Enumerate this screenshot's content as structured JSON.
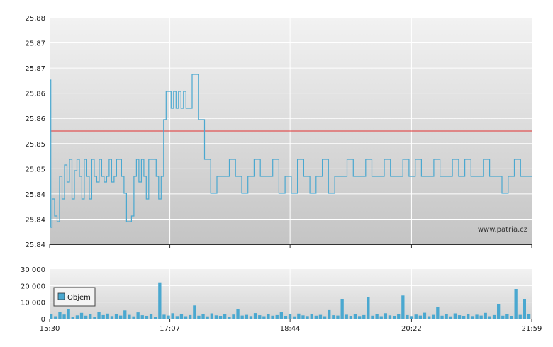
{
  "chart_data": [
    {
      "type": "line",
      "grid": true,
      "x_range": [
        "15:30",
        "21:59"
      ],
      "x_tick_labels": [
        "15:30",
        "17:07",
        "18:44",
        "20:22",
        "21:59"
      ],
      "ylim": [
        25.84,
        25.88
      ],
      "y_tick_labels": [
        "25,88",
        "25,87",
        "25,87",
        "25,86",
        "25,86",
        "25,85",
        "25,85",
        "25,84",
        "25,84",
        "25,84"
      ],
      "reference_line": {
        "value": 25.86,
        "color": "#e03030"
      },
      "watermark": "www.patria.cz",
      "series": [
        {
          "color": "#4aa8d0",
          "x": [
            "15:30",
            "15:31",
            "15:32",
            "15:34",
            "15:36",
            "15:38",
            "15:40",
            "15:42",
            "15:44",
            "15:46",
            "15:48",
            "15:50",
            "15:52",
            "15:54",
            "15:56",
            "15:58",
            "16:00",
            "16:02",
            "16:04",
            "16:06",
            "16:08",
            "16:10",
            "16:12",
            "16:14",
            "16:16",
            "16:18",
            "16:20",
            "16:22",
            "16:24",
            "16:26",
            "16:28",
            "16:30",
            "16:32",
            "16:34",
            "16:36",
            "16:38",
            "16:40",
            "16:42",
            "16:44",
            "16:46",
            "16:48",
            "16:50",
            "16:52",
            "16:54",
            "16:56",
            "16:58",
            "17:00",
            "17:02",
            "17:04",
            "17:06",
            "17:08",
            "17:10",
            "17:12",
            "17:14",
            "17:16",
            "17:18",
            "17:20",
            "17:25",
            "17:30",
            "17:35",
            "17:40",
            "17:45",
            "17:50",
            "17:55",
            "18:00",
            "18:05",
            "18:10",
            "18:15",
            "18:20",
            "18:25",
            "18:30",
            "18:35",
            "18:40",
            "18:45",
            "18:50",
            "18:55",
            "19:00",
            "19:05",
            "19:10",
            "19:15",
            "19:20",
            "19:25",
            "19:30",
            "19:35",
            "19:40",
            "19:45",
            "19:50",
            "19:55",
            "20:00",
            "20:05",
            "20:10",
            "20:15",
            "20:20",
            "20:25",
            "20:30",
            "20:35",
            "20:40",
            "20:45",
            "20:50",
            "20:55",
            "21:00",
            "21:05",
            "21:10",
            "21:15",
            "21:20",
            "21:25",
            "21:30",
            "21:35",
            "21:40",
            "21:45",
            "21:50",
            "21:55",
            "21:59"
          ],
          "values": [
            25.869,
            25.843,
            25.848,
            25.845,
            25.844,
            25.852,
            25.848,
            25.854,
            25.851,
            25.855,
            25.848,
            25.853,
            25.855,
            25.852,
            25.848,
            25.855,
            25.852,
            25.848,
            25.855,
            25.852,
            25.851,
            25.855,
            25.852,
            25.851,
            25.852,
            25.855,
            25.851,
            25.852,
            25.855,
            25.855,
            25.852,
            25.849,
            25.844,
            25.844,
            25.845,
            25.852,
            25.855,
            25.851,
            25.855,
            25.852,
            25.848,
            25.855,
            25.855,
            25.855,
            25.852,
            25.848,
            25.852,
            25.862,
            25.867,
            25.867,
            25.864,
            25.867,
            25.864,
            25.867,
            25.864,
            25.867,
            25.864,
            25.87,
            25.862,
            25.855,
            25.849,
            25.852,
            25.852,
            25.855,
            25.852,
            25.849,
            25.852,
            25.855,
            25.852,
            25.852,
            25.855,
            25.849,
            25.852,
            25.849,
            25.855,
            25.852,
            25.849,
            25.852,
            25.855,
            25.849,
            25.852,
            25.852,
            25.855,
            25.852,
            25.852,
            25.855,
            25.852,
            25.852,
            25.855,
            25.852,
            25.852,
            25.855,
            25.852,
            25.855,
            25.852,
            25.852,
            25.855,
            25.852,
            25.852,
            25.855,
            25.852,
            25.855,
            25.852,
            25.852,
            25.855,
            25.852,
            25.852,
            25.849,
            25.852,
            25.855,
            25.852,
            25.852,
            25.852
          ]
        }
      ]
    },
    {
      "type": "bar",
      "grid": true,
      "x_range": [
        "15:30",
        "21:59"
      ],
      "ylim": [
        0,
        30000
      ],
      "y_tick_labels": [
        "30 000",
        "20 000",
        "10 000",
        "0"
      ],
      "legend": {
        "position": "left",
        "entries": [
          "Objem"
        ]
      },
      "series": [
        {
          "name": "Objem",
          "color": "#4aa8d0",
          "values": [
            3000,
            1500,
            4000,
            2500,
            6000,
            1200,
            2000,
            3500,
            1800,
            2600,
            1000,
            4200,
            2200,
            3100,
            1600,
            2800,
            1900,
            5000,
            2300,
            1400,
            3800,
            2100,
            1700,
            2900,
            1300,
            22000,
            2400,
            1900,
            3300,
            1600,
            2700,
            1500,
            2200,
            8000,
            1800,
            2600,
            1400,
            3200,
            2000,
            1700,
            2900,
            1300,
            2500,
            6000,
            1900,
            2300,
            1600,
            3400,
            2100,
            1500,
            2800,
            1800,
            2200,
            4000,
            1700,
            2600,
            1400,
            3100,
            2000,
            1600,
            2700,
            1800,
            2300,
            1500,
            5200,
            2100,
            1900,
            12000,
            2400,
            1700,
            3000,
            1600,
            2200,
            13000,
            1800,
            2600,
            1500,
            3300,
            2000,
            1700,
            2900,
            14000,
            2200,
            1600,
            2500,
            1900,
            3600,
            1500,
            2300,
            7000,
            1800,
            2700,
            1400,
            3200,
            2100,
            1700,
            2800,
            1600,
            2400,
            1900,
            3500,
            1500,
            2200,
            9000,
            1800,
            2600,
            1700,
            18000,
            2300,
            12000,
            3000
          ]
        }
      ]
    }
  ]
}
